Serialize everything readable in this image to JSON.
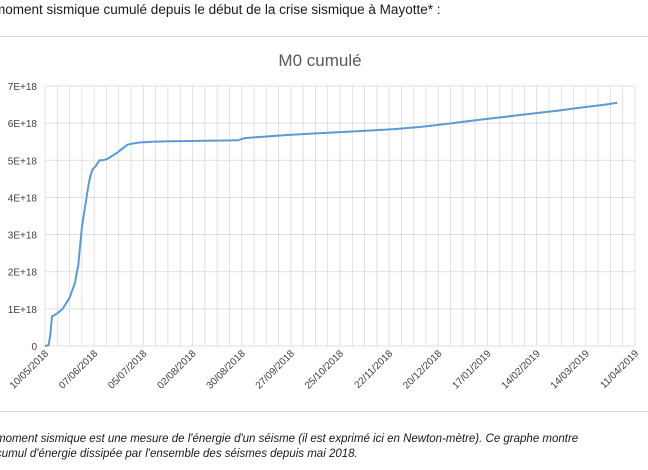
{
  "heading": "moment sismique cumulé depuis le début de la crise sismique à Mayotte* :",
  "caption_lines": [
    "moment sismique est une mesure de l'énergie d'un séisme (il est exprimé ici en Newton-mètre). Ce graphe montre",
    "cumul d'énergie dissipée par l'ensemble des séismes depuis mai 2018."
  ],
  "chart_data": {
    "type": "line",
    "title": "M0 cumulé",
    "xlabel": "",
    "ylabel": "",
    "x_tick_labels": [
      "10/05/2018",
      "07/06/2018",
      "05/07/2018",
      "02/08/2018",
      "30/08/2018",
      "27/09/2018",
      "25/10/2018",
      "22/11/2018",
      "20/12/2018",
      "17/01/2019",
      "14/02/2019",
      "14/03/2019",
      "11/04/2019"
    ],
    "y_tick_labels": [
      "0",
      "1E+18",
      "2E+18",
      "3E+18",
      "4E+18",
      "5E+18",
      "6E+18",
      "7E+18"
    ],
    "ylim": [
      0,
      7e+18
    ],
    "grid": true,
    "line_color": "#5b9bd5",
    "series": [
      {
        "x": [
          "2018-05-10",
          "2018-05-12",
          "2018-05-13",
          "2018-05-14",
          "2018-05-15",
          "2018-05-17",
          "2018-05-20",
          "2018-05-22",
          "2018-05-24",
          "2018-05-27",
          "2018-05-29",
          "2018-05-30",
          "2018-05-31",
          "2018-06-01",
          "2018-06-02",
          "2018-06-03",
          "2018-06-04",
          "2018-06-05",
          "2018-06-06",
          "2018-06-07",
          "2018-06-08",
          "2018-06-10",
          "2018-06-12",
          "2018-06-15",
          "2018-06-20",
          "2018-06-24",
          "2018-06-26",
          "2018-06-30",
          "2018-07-03",
          "2018-07-10",
          "2018-07-20",
          "2018-08-01",
          "2018-08-15",
          "2018-08-28",
          "2018-09-01",
          "2018-09-10",
          "2018-09-25",
          "2018-10-10",
          "2018-10-25",
          "2018-11-10",
          "2018-11-25",
          "2018-12-10",
          "2018-12-25",
          "2019-01-10",
          "2019-01-25",
          "2019-02-10",
          "2019-02-25",
          "2019-03-10",
          "2019-03-25",
          "2019-04-01"
        ],
        "y": [
          0,
          2e+16,
          3e+17,
          8e+17,
          8.2e+17,
          8.8e+17,
          1e+18,
          1.15e+18,
          1.3e+18,
          1.7e+18,
          2.2e+18,
          2.7e+18,
          3.2e+18,
          3.5e+18,
          3.8e+18,
          4.1e+18,
          4.4e+18,
          4.6e+18,
          4.75e+18,
          4.8e+18,
          4.85e+18,
          5e+18,
          5e+18,
          5.05e+18,
          5.2e+18,
          5.35e+18,
          5.42e+18,
          5.46e+18,
          5.48e+18,
          5.5e+18,
          5.51e+18,
          5.52e+18,
          5.53e+18,
          5.54e+18,
          5.6e+18,
          5.63e+18,
          5.68e+18,
          5.72e+18,
          5.76e+18,
          5.8e+18,
          5.84e+18,
          5.9e+18,
          5.98e+18,
          6.08e+18,
          6.16e+18,
          6.25e+18,
          6.33e+18,
          6.41e+18,
          6.5e+18,
          6.55e+18
        ]
      }
    ]
  }
}
